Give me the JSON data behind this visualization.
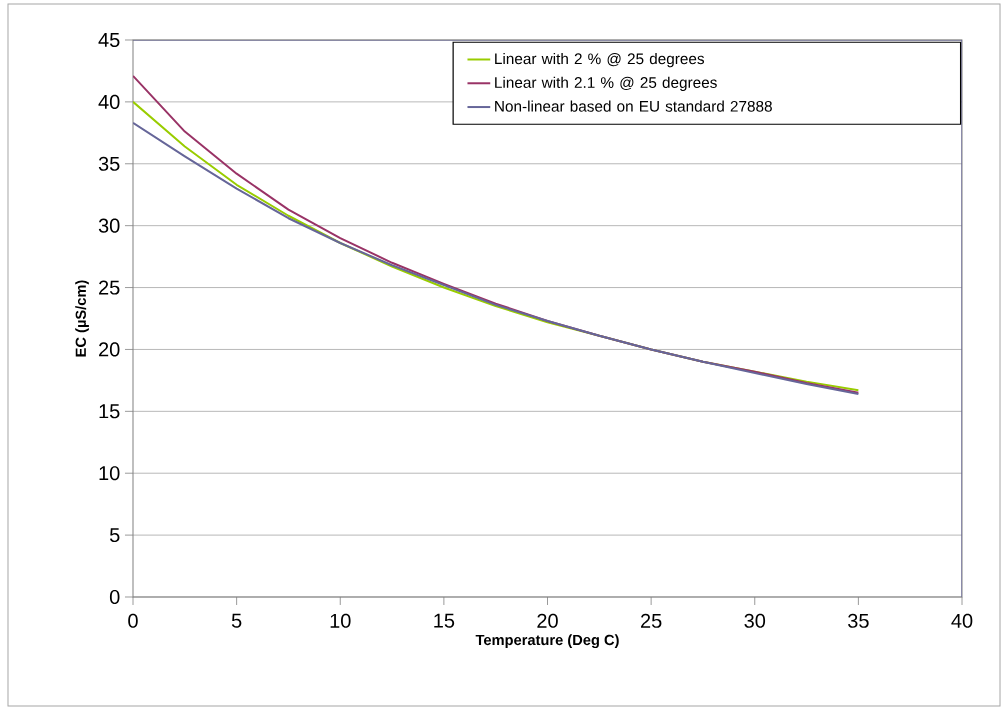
{
  "chart_data": {
    "type": "line",
    "xlabel": "Temperature (Deg C)",
    "ylabel": "EC (µS/cm)",
    "x": [
      0,
      2.5,
      5,
      7.5,
      10,
      12.5,
      15,
      17.5,
      20,
      22.5,
      25,
      27.5,
      30,
      32.5,
      35
    ],
    "series": [
      {
        "name": "Linear with 2 % @ 25 degrees",
        "color": "#99cc00",
        "values": [
          40,
          36.4,
          33.3,
          30.8,
          28.6,
          26.7,
          25.0,
          23.5,
          22.2,
          21.1,
          20,
          19.0,
          18.2,
          17.4,
          16.7
        ]
      },
      {
        "name": "Linear with 2.1 % @ 25 degrees",
        "color": "#993366",
        "values": [
          42.1,
          37.6,
          34.2,
          31.3,
          29.0,
          27.0,
          25.3,
          23.7,
          22.3,
          21.1,
          20,
          19.0,
          18.2,
          17.3,
          16.5
        ]
      },
      {
        "name": "Non-linear based on EU standard 27888",
        "color": "#666699",
        "values": [
          38.3,
          35.6,
          33.0,
          30.6,
          28.6,
          26.8,
          25.2,
          23.6,
          22.3,
          21.1,
          20,
          19.0,
          18.1,
          17.2,
          16.4
        ]
      }
    ],
    "xlim": [
      0,
      40
    ],
    "xticks": [
      0,
      5,
      10,
      15,
      20,
      25,
      30,
      35,
      40
    ],
    "ylim": [
      0,
      45
    ],
    "yticks": [
      0,
      5,
      10,
      15,
      20,
      25,
      30,
      35,
      40,
      45
    ],
    "grid": "y",
    "legend": "top right",
    "marker": "none",
    "line_style": "solid"
  }
}
